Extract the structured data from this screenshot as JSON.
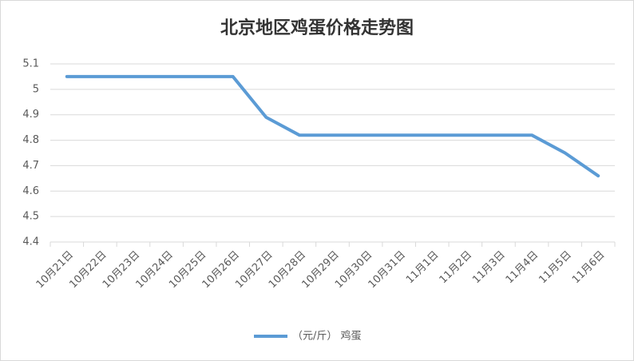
{
  "chart_data": {
    "type": "line",
    "title": "北京地区鸡蛋价格走势图",
    "categories": [
      "10月21日",
      "10月22日",
      "10月23日",
      "10月24日",
      "10月25日",
      "10月26日",
      "10月27日",
      "10月28日",
      "10月29日",
      "10月30日",
      "10月31日",
      "11月1日",
      "11月2日",
      "11月3日",
      "11月4日",
      "11月5日",
      "11月6日"
    ],
    "series": [
      {
        "name": "（元/斤） 鸡蛋",
        "color": "#5b9bd5",
        "values": [
          5.05,
          5.05,
          5.05,
          5.05,
          5.05,
          5.05,
          4.89,
          4.82,
          4.82,
          4.82,
          4.82,
          4.82,
          4.82,
          4.82,
          4.82,
          4.75,
          4.66
        ]
      }
    ],
    "ylim": [
      4.4,
      5.1
    ],
    "yticks": [
      4.4,
      4.5,
      4.6,
      4.7,
      4.8,
      4.9,
      5,
      5.1
    ],
    "grid": true,
    "legend": "bottom"
  }
}
